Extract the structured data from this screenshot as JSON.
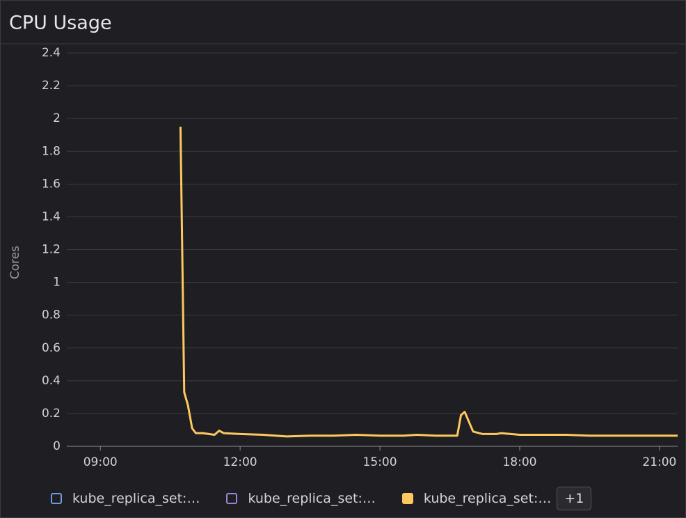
{
  "chart_data": {
    "type": "line",
    "title": "CPU Usage",
    "y_label": "Cores",
    "xlim": [
      8.28,
      21.39
    ],
    "xticks": [
      {
        "value": 9,
        "label": "09:00"
      },
      {
        "value": 12,
        "label": "12:00"
      },
      {
        "value": 15,
        "label": "15:00"
      },
      {
        "value": 18,
        "label": "18:00"
      },
      {
        "value": 21,
        "label": "21:00"
      }
    ],
    "ylim": [
      0,
      2.4
    ],
    "yticks": [
      0,
      0.2,
      0.4,
      0.6,
      0.8,
      1,
      1.2,
      1.4,
      1.6,
      1.8,
      2,
      2.2,
      2.4
    ],
    "grid": true,
    "series": [
      {
        "name": "kube_replica_set:…",
        "color": "#6b9ee0",
        "filled": false,
        "x": [],
        "values": []
      },
      {
        "name": "kube_replica_set:…",
        "color": "#9d83d8",
        "filled": false,
        "x": [],
        "values": []
      },
      {
        "name": "kube_replica_set:…",
        "color": "#fcc85f",
        "filled": true,
        "x": [
          10.72,
          10.8,
          10.88,
          10.97,
          11.05,
          11.2,
          11.45,
          11.55,
          11.65,
          12.0,
          12.5,
          13.0,
          13.5,
          14.0,
          14.5,
          15.0,
          15.5,
          15.8,
          16.2,
          16.66,
          16.74,
          16.82,
          17.0,
          17.2,
          17.5,
          17.6,
          18.0,
          18.5,
          19.0,
          19.5,
          20.0,
          20.5,
          21.0,
          21.39
        ],
        "values": [
          1.95,
          0.33,
          0.25,
          0.11,
          0.08,
          0.08,
          0.07,
          0.095,
          0.08,
          0.075,
          0.07,
          0.06,
          0.065,
          0.065,
          0.07,
          0.065,
          0.065,
          0.07,
          0.065,
          0.065,
          0.19,
          0.21,
          0.09,
          0.075,
          0.075,
          0.08,
          0.07,
          0.07,
          0.07,
          0.065,
          0.065,
          0.065,
          0.065,
          0.065
        ]
      }
    ],
    "more_button": "+1"
  }
}
